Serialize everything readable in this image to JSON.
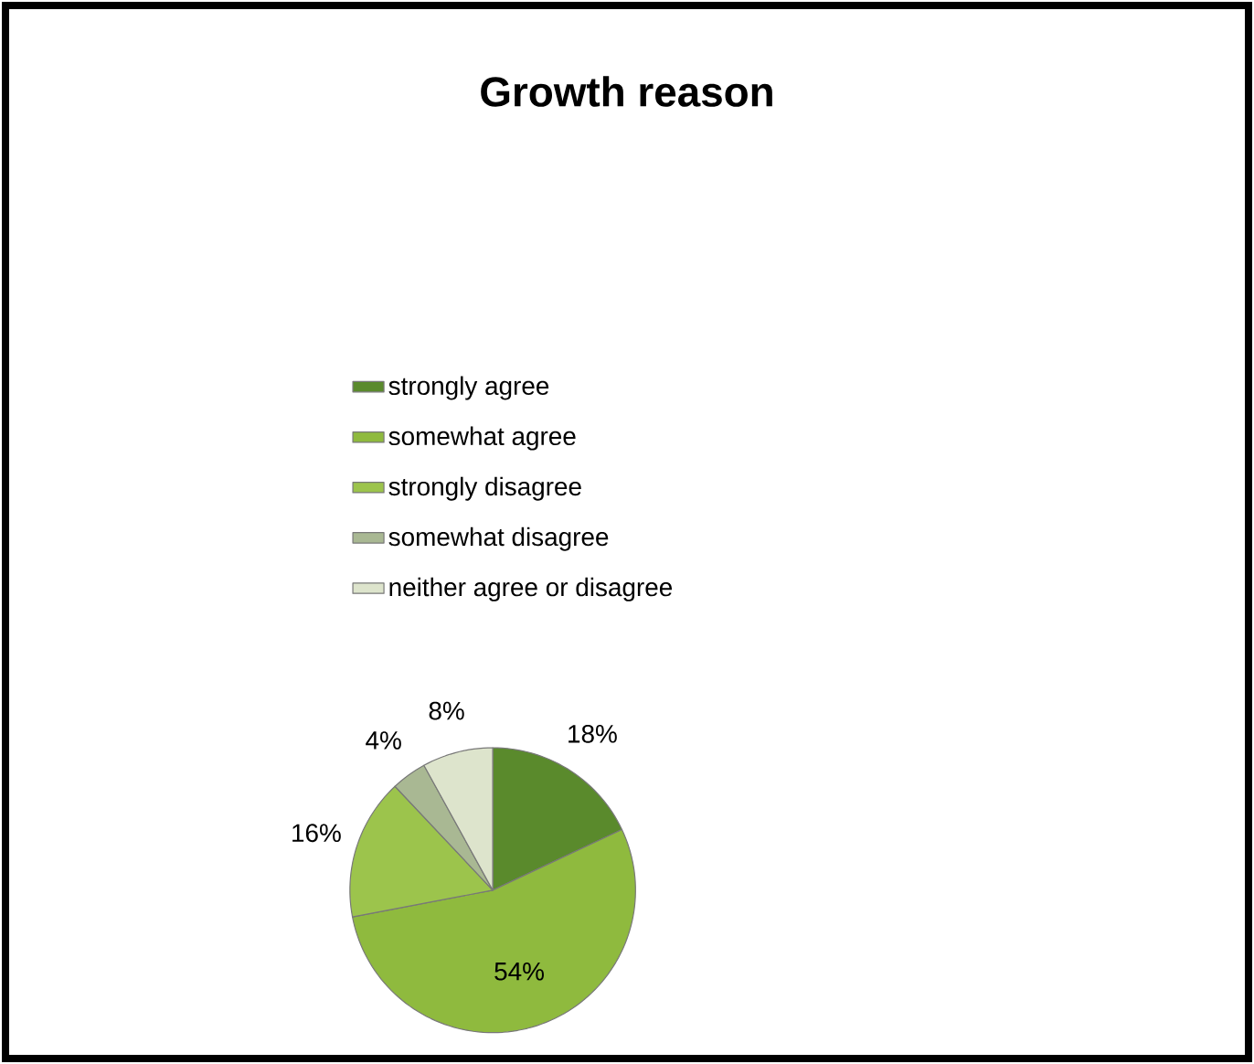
{
  "chart_data": {
    "type": "pie",
    "title": "Growth reason",
    "categories": [
      "strongly agree",
      "somewhat agree",
      "strongly disagree",
      "somewhat disagree",
      "neither agree or disagree"
    ],
    "values": [
      18,
      54,
      16,
      4,
      8
    ],
    "value_labels": [
      "18%",
      "54%",
      "16%",
      "4%",
      "8%"
    ],
    "colors": [
      "#5a8a2c",
      "#8fba3e",
      "#9cc44c",
      "#a9b893",
      "#dde4cc"
    ],
    "legend": "top"
  }
}
